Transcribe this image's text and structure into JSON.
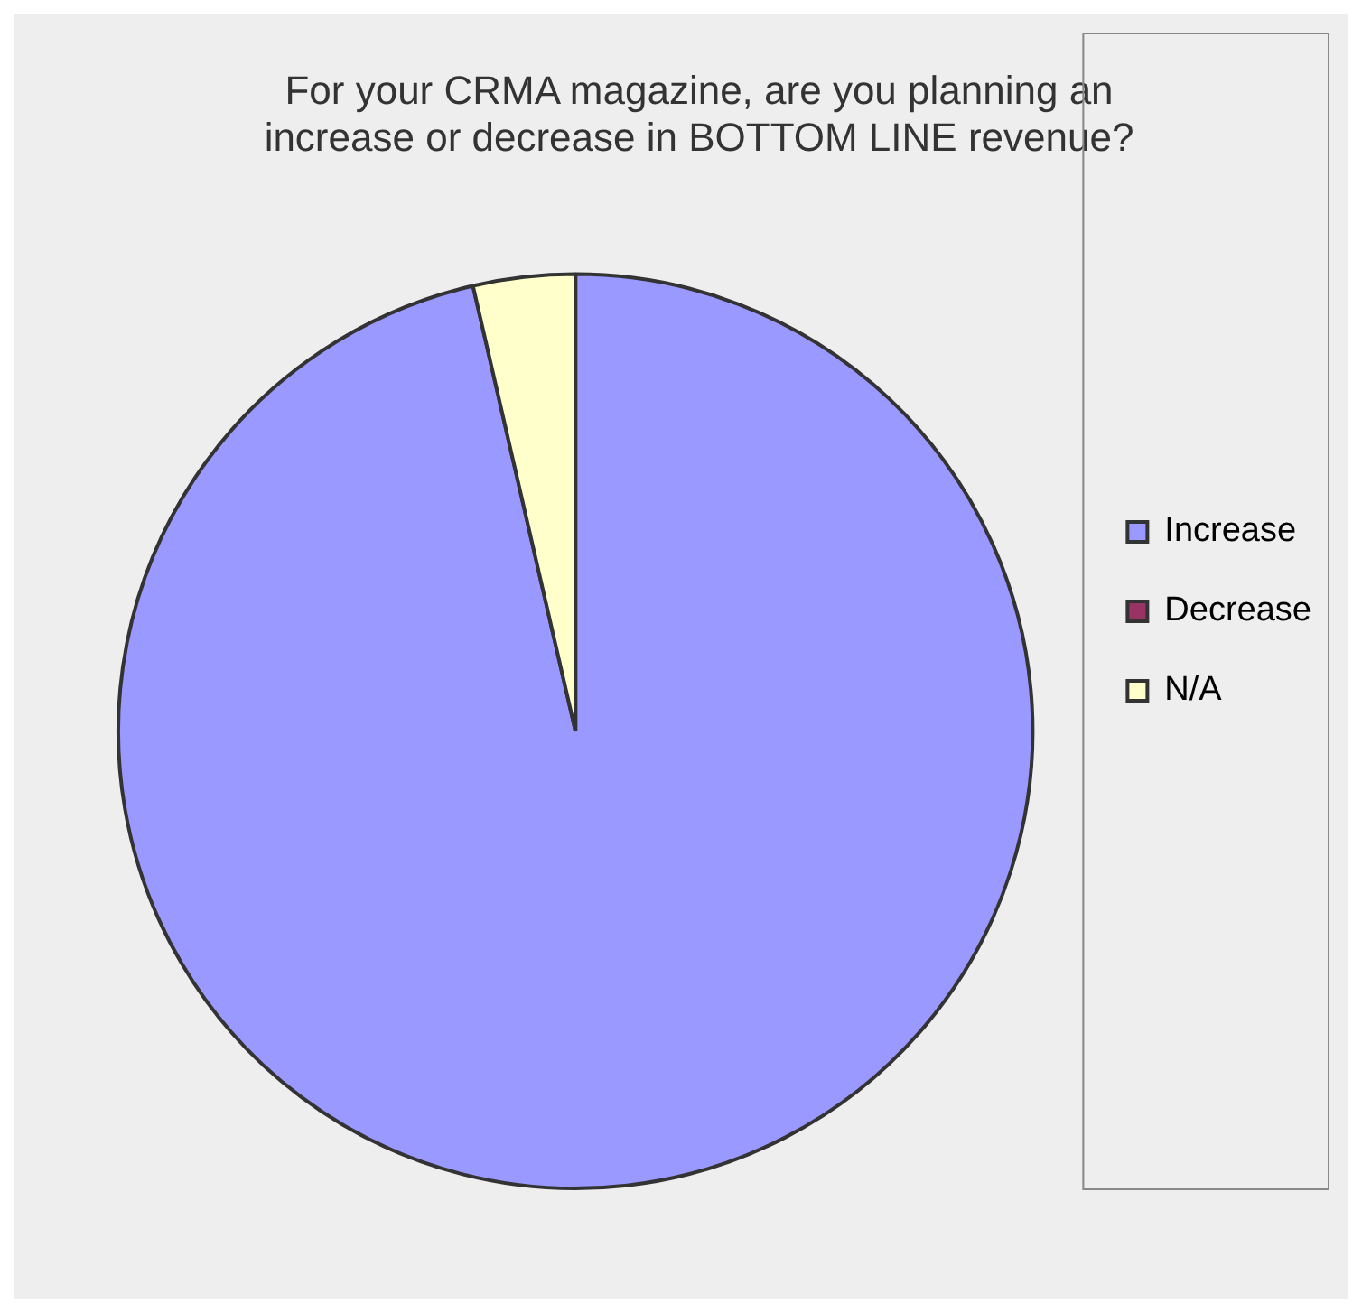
{
  "chart_data": {
    "type": "pie",
    "title": "For your CRMA magazine, are you planning an increase or decrease in BOTTOM LINE revenue?",
    "categories": [
      "Increase",
      "Decrease",
      "N/A"
    ],
    "values": [
      96.4,
      0,
      3.6
    ],
    "colors": [
      "#9999ff",
      "#993366",
      "#ffffcc"
    ],
    "legend": "right"
  }
}
